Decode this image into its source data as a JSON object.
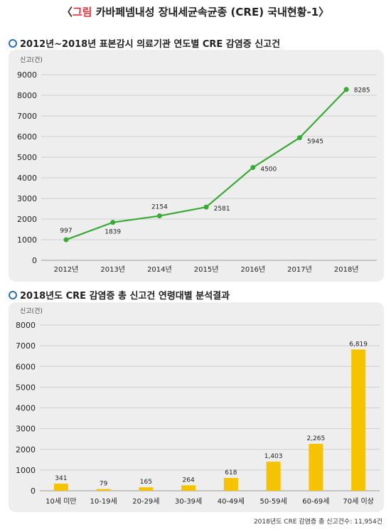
{
  "header": {
    "title_prefix": "〈",
    "title_tag": "그림",
    "title_text": " 카바페넴내성 장내세균속균종 (CRE) 국내현황-1〉"
  },
  "section1": {
    "title": "2012년~2018년 표본감시 의료기관 연도별 CRE 감염증 신고건"
  },
  "section2": {
    "title": "2018년도 CRE 감염증 총 신고건 연령대별 분석결과"
  },
  "footnote": "2018년도 CRE 감염증 총 신고건수: 11,954건",
  "colors": {
    "line": "#3aaa35",
    "bar": "#f6c300",
    "ring": "#2a6fb8",
    "accent": "#e0313a",
    "panel": "#eeeeee"
  },
  "chart_data": [
    {
      "type": "line",
      "ylabel": "신고(건)",
      "ylim": [
        0,
        9000
      ],
      "yticks": [
        0,
        1000,
        2000,
        3000,
        4000,
        5000,
        6000,
        7000,
        8000,
        9000
      ],
      "categories": [
        "2012년",
        "2013년",
        "2014년",
        "2015년",
        "2016년",
        "2017년",
        "2018년"
      ],
      "values": [
        997,
        1839,
        2154,
        2581,
        4500,
        5945,
        8285
      ],
      "data_labels": [
        "997",
        "1839",
        "2154",
        "2581",
        "4500",
        "5945",
        "8285"
      ]
    },
    {
      "type": "bar",
      "ylabel": "신고(건)",
      "ylim": [
        0,
        8000
      ],
      "yticks": [
        0,
        1000,
        2000,
        3000,
        4000,
        5000,
        6000,
        7000,
        8000
      ],
      "categories": [
        "10세 미만",
        "10-19세",
        "20-29세",
        "30-39세",
        "40-49세",
        "50-59세",
        "60-69세",
        "70세 이상"
      ],
      "values": [
        341,
        79,
        165,
        264,
        618,
        1403,
        2265,
        6819
      ],
      "data_labels": [
        "341",
        "79",
        "165",
        "264",
        "618",
        "1,403",
        "2,265",
        "6,819"
      ]
    }
  ]
}
